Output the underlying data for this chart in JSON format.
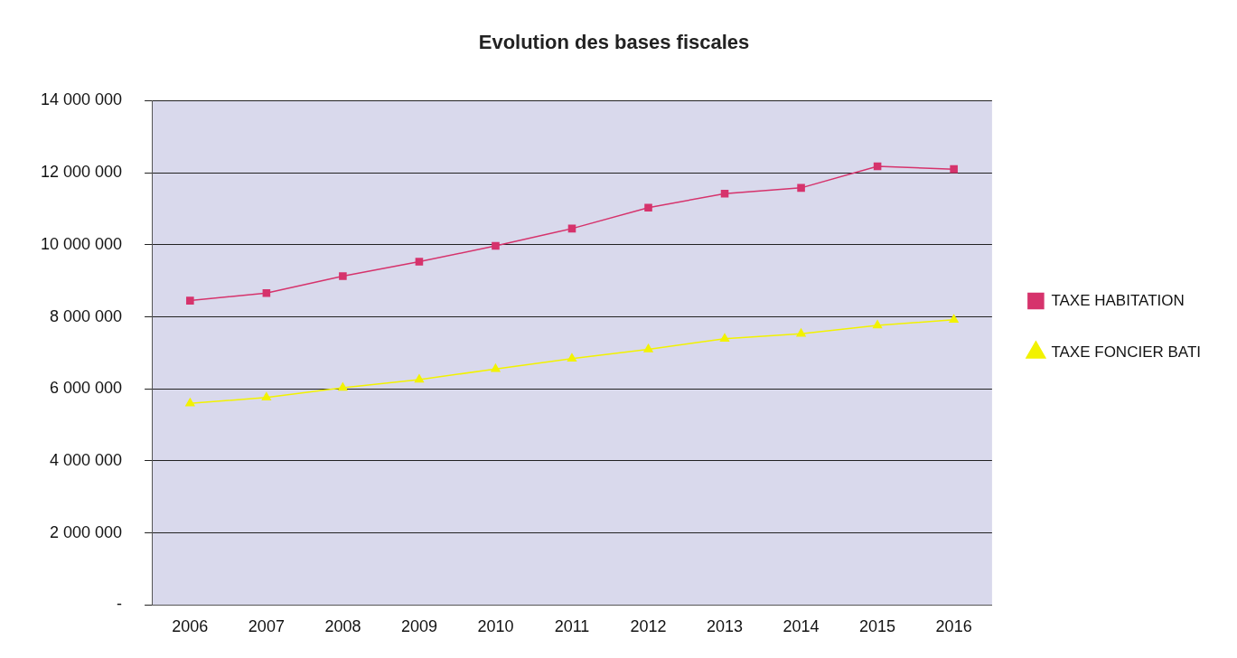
{
  "chart_data": {
    "type": "line",
    "title": "Evolution des bases fiscales",
    "categories": [
      "2006",
      "2007",
      "2008",
      "2009",
      "2010",
      "2011",
      "2012",
      "2013",
      "2014",
      "2015",
      "2016"
    ],
    "series": [
      {
        "name": "TAXE HABITATION",
        "color": "#d6336c",
        "marker": "square",
        "values": [
          8450000,
          8660000,
          9130000,
          9530000,
          9970000,
          10450000,
          11030000,
          11420000,
          11580000,
          12180000,
          12100000
        ]
      },
      {
        "name": "TAXE FONCIER BATI",
        "color": "#f2f200",
        "marker": "triangle",
        "values": [
          5600000,
          5760000,
          6030000,
          6260000,
          6550000,
          6840000,
          7100000,
          7390000,
          7530000,
          7760000,
          7920000
        ]
      }
    ],
    "ylim": [
      0,
      14000000
    ],
    "yticks": [
      {
        "value": 0,
        "label": "-"
      },
      {
        "value": 2000000,
        "label": "2 000 000"
      },
      {
        "value": 4000000,
        "label": "4 000 000"
      },
      {
        "value": 6000000,
        "label": "6 000 000"
      },
      {
        "value": 8000000,
        "label": "8 000 000"
      },
      {
        "value": 10000000,
        "label": "10 000 000"
      },
      {
        "value": 12000000,
        "label": "12 000 000"
      },
      {
        "value": 14000000,
        "label": "14 000 000"
      }
    ],
    "grid": "y",
    "legend": "right",
    "line_style": "solid"
  }
}
